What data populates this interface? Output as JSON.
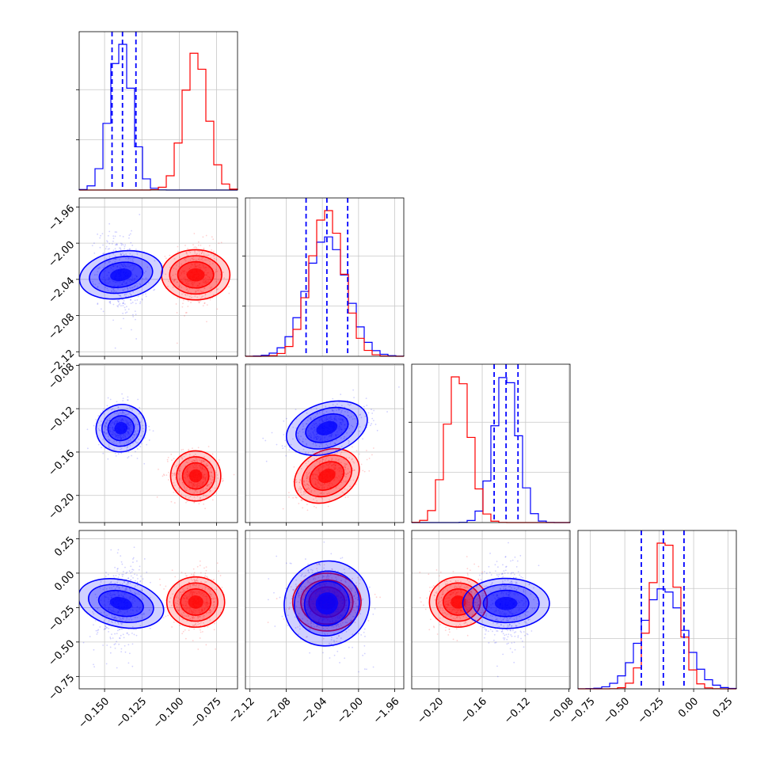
{
  "chart_data": {
    "type": "corner",
    "n_params": 4,
    "grid": true,
    "colors": {
      "series_a": "#0000ff",
      "series_b": "#ff0000"
    },
    "series": [
      {
        "color": "#0000ff",
        "means": [
          -0.139,
          -2.035,
          -0.138,
          -0.22
        ],
        "sds": [
          0.0075,
          0.022,
          0.011,
          0.15
        ],
        "corr": {
          "0-1": -0.2,
          "0-2": -0.05,
          "0-3": 0.3,
          "1-2": 0.4,
          "1-3": -0.3,
          "2-3": 0.0
        }
      },
      {
        "color": "#ff0000",
        "means": [
          -0.089,
          -2.035,
          -0.182,
          -0.21
        ],
        "sds": [
          0.008,
          0.018,
          0.011,
          0.1
        ],
        "corr": {
          "0-1": 0.0,
          "0-2": -0.1,
          "0-3": 0.0,
          "1-2": 0.45,
          "1-3": 0.0,
          "2-3": 0.0
        }
      }
    ],
    "quantile_lines": [
      [
        -0.145,
        -0.138,
        -0.129
      ],
      [
        -2.058,
        -2.035,
        -2.012
      ],
      [
        -0.149,
        -0.138,
        -0.127
      ],
      [
        -0.38,
        -0.22,
        -0.07
      ]
    ],
    "axis_ranges": [
      [
        -0.167,
        -0.061
      ],
      [
        -2.125,
        -1.95
      ],
      [
        -0.225,
        -0.079
      ],
      [
        -0.84,
        0.31
      ]
    ],
    "x_ticks": [
      [
        "−0.150",
        "−0.125",
        "−0.100",
        "−0.075"
      ],
      [
        "−2.12",
        "−2.08",
        "−2.04",
        "−2.00",
        "−1.96"
      ],
      [
        "−0.20",
        "−0.16",
        "−0.12",
        "−0.08"
      ],
      [
        "−0.75",
        "−0.50",
        "−0.25",
        "0.00",
        "0.25"
      ]
    ],
    "x_tick_values": [
      [
        -0.15,
        -0.125,
        -0.1,
        -0.075
      ],
      [
        -2.12,
        -2.08,
        -2.04,
        -2.0,
        -1.96
      ],
      [
        -0.2,
        -0.16,
        -0.12,
        -0.08
      ],
      [
        -0.75,
        -0.5,
        -0.25,
        0.0,
        0.25
      ]
    ],
    "y_ticks": {
      "row1": [
        "−1.96",
        "−2.00",
        "−2.04",
        "−2.08",
        "−2.12"
      ],
      "row2": [
        "−0.08",
        "−0.12",
        "−0.16",
        "−0.20"
      ],
      "row3": [
        "0.25",
        "0.00",
        "−0.25",
        "−0.50",
        "−0.75"
      ]
    },
    "y_tick_values": {
      "row1": [
        -1.96,
        -2.0,
        -2.04,
        -2.08,
        -2.12
      ],
      "row2": [
        -0.08,
        -0.12,
        -0.16,
        -0.2
      ],
      "row3": [
        0.25,
        0.0,
        -0.25,
        -0.5,
        -0.75
      ]
    },
    "hist_bins": 20
  }
}
